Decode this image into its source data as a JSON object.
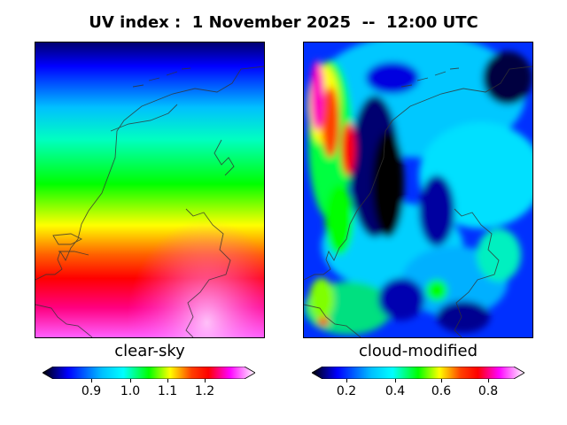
{
  "title": "UV index :  1 November 2025  --  12:00 UTC",
  "panels": {
    "left": {
      "caption": "clear-sky",
      "ticks": [
        "0.9",
        "1.0",
        "1.1",
        "1.2"
      ]
    },
    "right": {
      "caption": "cloud-modified",
      "ticks": [
        "0.2",
        "0.4",
        "0.6",
        "0.8"
      ]
    }
  },
  "colormap": [
    "#000000",
    "#0000ff",
    "#00b0ff",
    "#00ffff",
    "#00ff60",
    "#00ff00",
    "#ffff00",
    "#ff8000",
    "#ff0000",
    "#ff00a0",
    "#ff00ff",
    "#ffffff"
  ]
}
